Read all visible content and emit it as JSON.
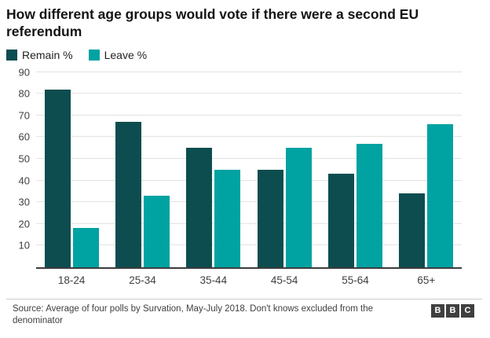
{
  "header": {
    "title": "How different age groups would vote if there were a second EU referendum"
  },
  "legend": [
    {
      "label": "Remain %",
      "color": "#0d4d4f"
    },
    {
      "label": "Leave %",
      "color": "#00a2a2"
    }
  ],
  "chart_data": {
    "type": "bar",
    "title": "How different age groups would vote if there were a second EU referendum",
    "categories": [
      "18-24",
      "25-34",
      "35-44",
      "45-54",
      "55-64",
      "65+"
    ],
    "series": [
      {
        "name": "Remain %",
        "color": "#0d4d4f",
        "values": [
          82,
          67,
          55,
          45,
          43,
          34
        ]
      },
      {
        "name": "Leave %",
        "color": "#00a2a2",
        "values": [
          18,
          33,
          45,
          55,
          57,
          66
        ]
      }
    ],
    "xlabel": "",
    "ylabel": "",
    "ylim": [
      0,
      90
    ],
    "yticks": [
      10,
      20,
      30,
      40,
      50,
      60,
      70,
      80,
      90
    ],
    "grid": true,
    "legend_position": "top"
  },
  "footer": {
    "source": "Source: Average of four polls by Survation, May-July 2018. Don't knows excluded from the denominator",
    "logo_letters": [
      "B",
      "B",
      "C"
    ]
  }
}
